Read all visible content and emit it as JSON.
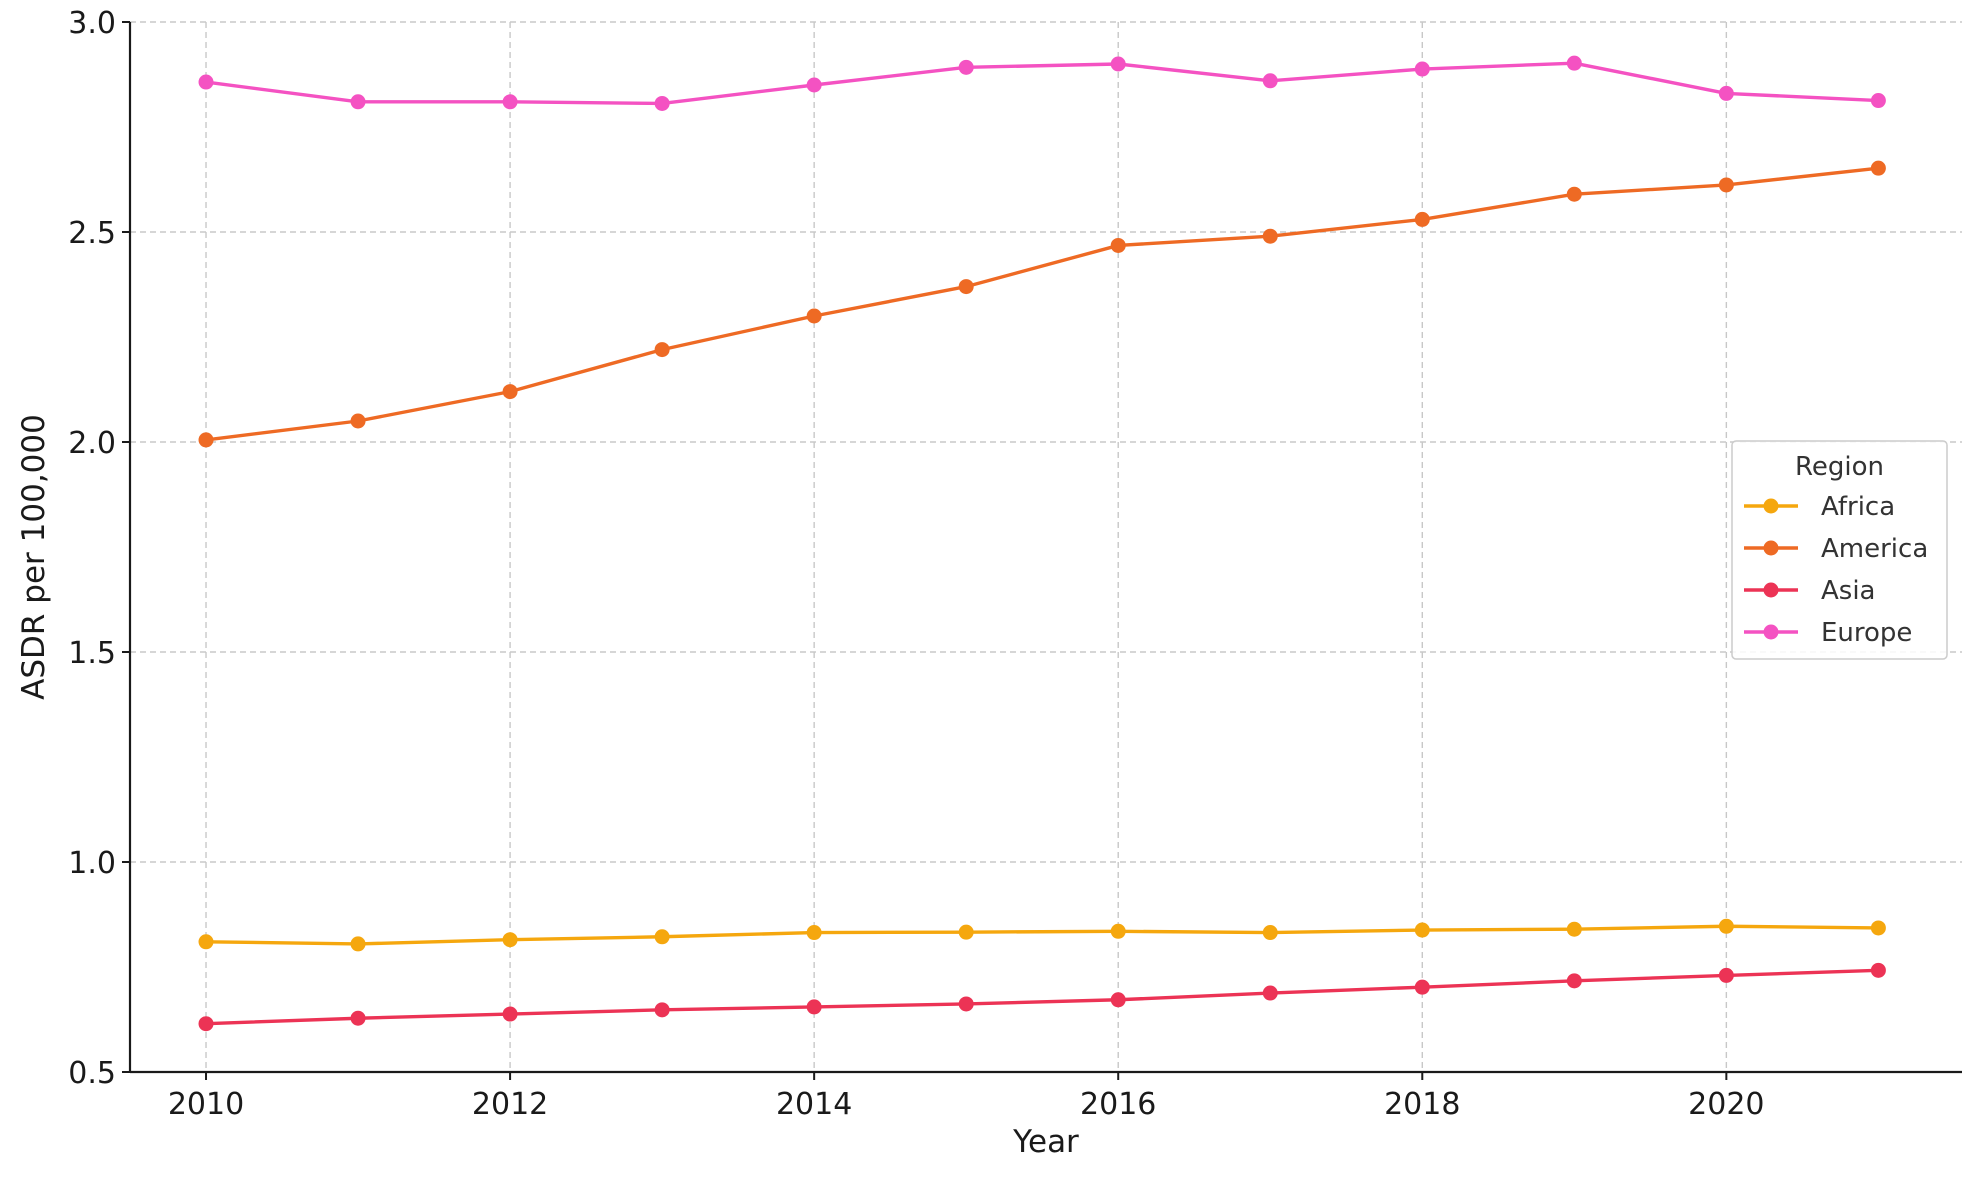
{
  "chart_data": {
    "type": "line",
    "title": "",
    "xlabel": "Year",
    "ylabel": "ASDR per 100,000",
    "xlim": [
      2009.5,
      2021.55
    ],
    "ylim": [
      0.5,
      3.0
    ],
    "x_ticks": [
      2010,
      2012,
      2014,
      2016,
      2018,
      2020
    ],
    "y_ticks": [
      "0.5",
      "1.0",
      "1.5",
      "2.0",
      "2.5",
      "3.0"
    ],
    "grid": true,
    "legend": {
      "title": "Region",
      "placement": "center-right"
    },
    "x": [
      2010,
      2011,
      2012,
      2013,
      2014,
      2015,
      2016,
      2017,
      2018,
      2019,
      2020,
      2021
    ],
    "series": [
      {
        "name": "Africa",
        "color": "#F5A70E",
        "values": [
          0.81,
          0.805,
          0.815,
          0.822,
          0.832,
          0.833,
          0.835,
          0.832,
          0.838,
          0.84,
          0.847,
          0.843
        ]
      },
      {
        "name": "America",
        "color": "#EE6A24",
        "values": [
          2.005,
          2.05,
          2.12,
          2.22,
          2.3,
          2.37,
          2.468,
          2.49,
          2.53,
          2.59,
          2.612,
          2.652
        ]
      },
      {
        "name": "Asia",
        "color": "#EC3355",
        "values": [
          0.615,
          0.628,
          0.638,
          0.648,
          0.655,
          0.662,
          0.672,
          0.688,
          0.702,
          0.717,
          0.73,
          0.742
        ]
      },
      {
        "name": "Europe",
        "color": "#F452C2",
        "values": [
          2.857,
          2.81,
          2.81,
          2.806,
          2.85,
          2.892,
          2.9,
          2.86,
          2.888,
          2.902,
          2.83,
          2.813
        ]
      }
    ]
  }
}
